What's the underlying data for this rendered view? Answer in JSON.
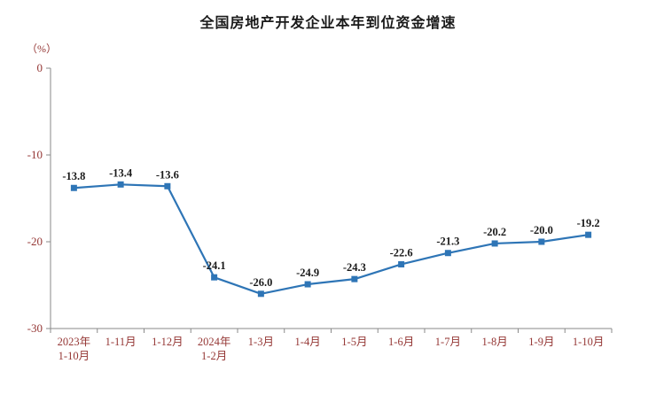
{
  "title": "全国房地产开发企业本年到位资金增速",
  "y_axis_unit": "（%）",
  "chart_data": {
    "type": "line",
    "categories": [
      [
        "2023年",
        "1-10月"
      ],
      [
        "1-11月"
      ],
      [
        "1-12月"
      ],
      [
        "2024年",
        "1-2月"
      ],
      [
        "1-3月"
      ],
      [
        "1-4月"
      ],
      [
        "1-5月"
      ],
      [
        "1-6月"
      ],
      [
        "1-7月"
      ],
      [
        "1-8月"
      ],
      [
        "1-9月"
      ],
      [
        "1-10月"
      ]
    ],
    "values": [
      -13.8,
      -13.4,
      -13.6,
      -24.1,
      -26.0,
      -24.9,
      -24.3,
      -22.6,
      -21.3,
      -20.2,
      -20.0,
      -19.2
    ],
    "title": "全国房地产开发企业本年到位资金增速",
    "xlabel": "",
    "ylabel": "（%）",
    "ylim": [
      -30,
      0
    ],
    "yticks": [
      0,
      -10,
      -20,
      -30
    ],
    "grid": false,
    "legend": "none",
    "line_color": "#2E75B6",
    "marker_color": "#2E75B6",
    "axis_color": "#8a8a8a",
    "tick_label_color": "#953735",
    "data_label_color": "#1a1a1a"
  }
}
